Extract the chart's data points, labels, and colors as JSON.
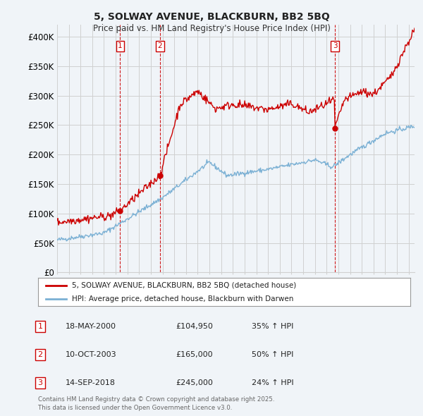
{
  "title": "5, SOLWAY AVENUE, BLACKBURN, BB2 5BQ",
  "subtitle": "Price paid vs. HM Land Registry's House Price Index (HPI)",
  "ylim": [
    0,
    420000
  ],
  "yticks": [
    0,
    50000,
    100000,
    150000,
    200000,
    250000,
    300000,
    350000,
    400000
  ],
  "ytick_labels": [
    "£0",
    "£50K",
    "£100K",
    "£150K",
    "£200K",
    "£250K",
    "£300K",
    "£350K",
    "£400K"
  ],
  "sale_color": "#cc0000",
  "hpi_color": "#7ab0d4",
  "grid_color": "#d0d0d0",
  "background_color": "#f0f4f8",
  "legend_label_sale": "5, SOLWAY AVENUE, BLACKBURN, BB2 5BQ (detached house)",
  "legend_label_hpi": "HPI: Average price, detached house, Blackburn with Darwen",
  "sale_dates": [
    2000.38,
    2003.78,
    2018.71
  ],
  "sale_prices": [
    104950,
    165000,
    245000
  ],
  "sale_labels": [
    "1",
    "2",
    "3"
  ],
  "vline_color": "#cc0000",
  "table_rows": [
    [
      "1",
      "18-MAY-2000",
      "£104,950",
      "35% ↑ HPI"
    ],
    [
      "2",
      "10-OCT-2003",
      "£165,000",
      "50% ↑ HPI"
    ],
    [
      "3",
      "14-SEP-2018",
      "£245,000",
      "24% ↑ HPI"
    ]
  ],
  "footer": "Contains HM Land Registry data © Crown copyright and database right 2025.\nThis data is licensed under the Open Government Licence v3.0.",
  "xmin": 1995,
  "xmax": 2025.5
}
